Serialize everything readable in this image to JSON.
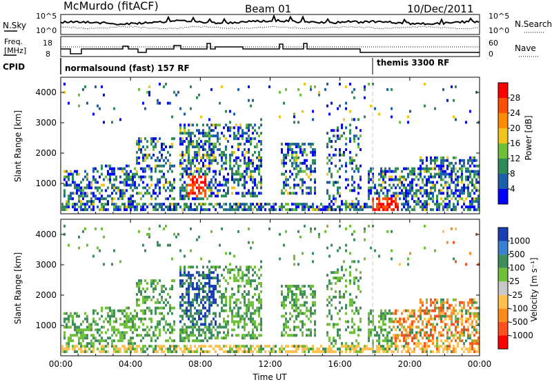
{
  "header": {
    "station": "McMurdo (fitACF)",
    "beam": "Beam 01",
    "date": "10/Dec/2011"
  },
  "sky_panel": {
    "left_label": "N.Sky",
    "right_label": "N.Search",
    "left_ticks": [
      "10^5",
      "10^0"
    ],
    "right_ticks": [
      "10^5",
      "10^0"
    ]
  },
  "freq_panel": {
    "left_label_1": "Freq.",
    "left_label_2": "[MHz]",
    "left_ticks": [
      "18",
      "8"
    ],
    "right_label": "Nave",
    "right_ticks": [
      "60",
      "0"
    ]
  },
  "cpid_panel": {
    "label": "CPID",
    "modes": [
      {
        "text": "normalsound (fast) 157 RF"
      },
      {
        "text": "themis 3300 RF"
      }
    ]
  },
  "colors": {
    "power": [
      "#0000ff",
      "#1c5ea8",
      "#2e8b57",
      "#6fbf3a",
      "#f0c419",
      "#ff8c00",
      "#ff5000",
      "#ff0000"
    ],
    "velocity": [
      "#1a3fb0",
      "#3a7fd0",
      "#3e8e5c",
      "#6fbf3a",
      "#c8c8c8",
      "#ffc04d",
      "#ff8c1a",
      "#ff5020",
      "#ff0000"
    ]
  },
  "chart_data": [
    {
      "type": "heatmap",
      "title": "Power",
      "ylabel": "Slant Range [km]",
      "xlabel": "",
      "x_ticks": [
        "00:00",
        "04:00",
        "08:00",
        "12:00",
        "16:00",
        "20:00",
        "00:00"
      ],
      "y_ticks": [
        "1000",
        "2000",
        "3000",
        "4000"
      ],
      "ylim": [
        0,
        4500
      ],
      "colorbar_label": "Power [dB]",
      "colorbar_ticks": [
        "4",
        "8",
        "12",
        "16",
        "20",
        "24",
        "28"
      ],
      "colorbar_range": [
        0,
        32
      ]
    },
    {
      "type": "heatmap",
      "title": "Velocity",
      "ylabel": "Slant Range [km]",
      "xlabel": "Time UT",
      "x_ticks": [
        "00:00",
        "04:00",
        "08:00",
        "12:00",
        "16:00",
        "20:00",
        "00:00"
      ],
      "y_ticks": [
        "1000",
        "2000",
        "3000",
        "4000"
      ],
      "ylim": [
        0,
        4500
      ],
      "colorbar_label": "Velocity [m s⁻¹]",
      "colorbar_ticks": [
        "1000",
        "500",
        "100",
        "25",
        "-25",
        "-100",
        "-500",
        "-1000"
      ]
    }
  ]
}
